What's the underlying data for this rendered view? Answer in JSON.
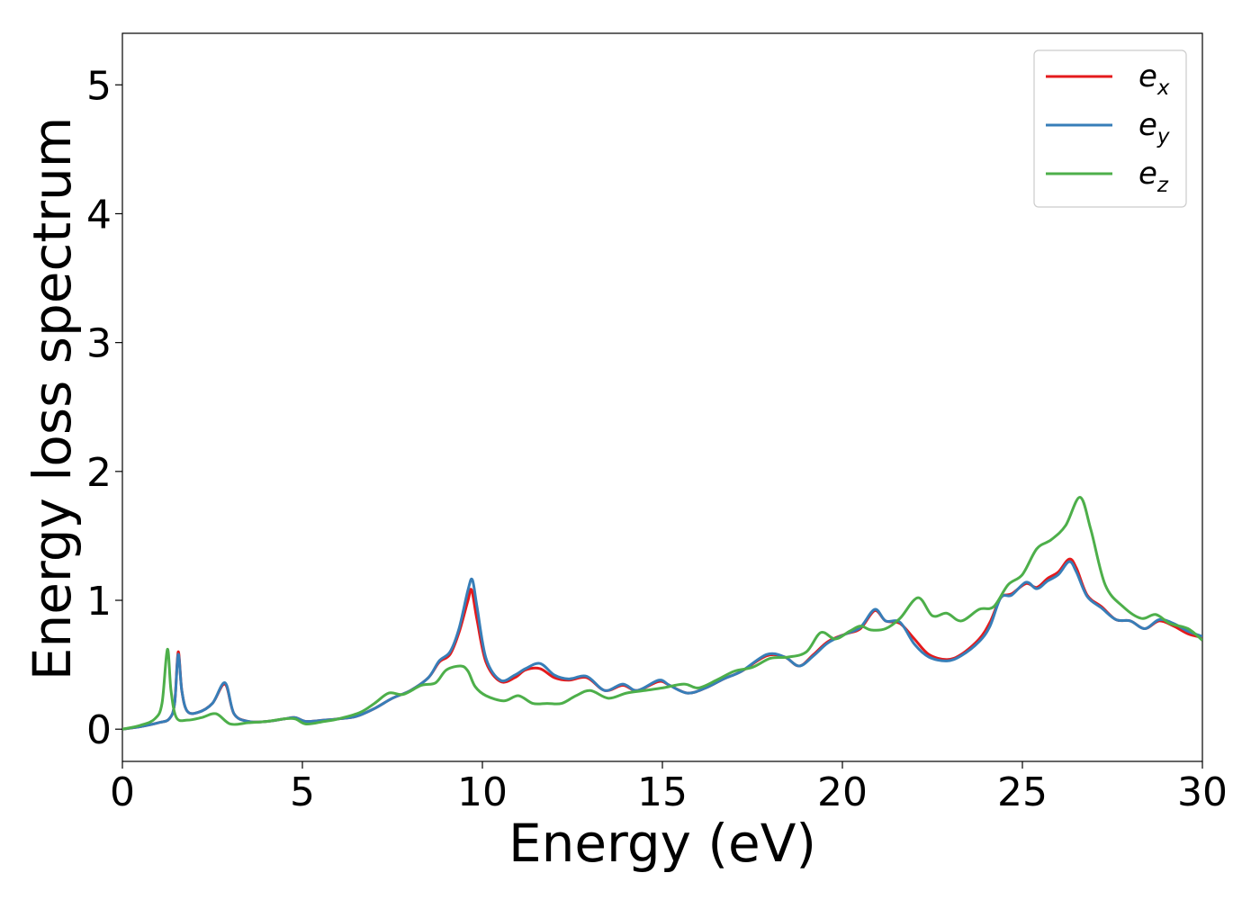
{
  "chart_data": {
    "type": "line",
    "xlabel": "Energy (eV)",
    "ylabel": "Energy loss spectrum",
    "xlim": [
      0,
      30
    ],
    "ylim": [
      -0.25,
      5.4
    ],
    "xticks": [
      0,
      5,
      10,
      15,
      20,
      25,
      30
    ],
    "yticks": [
      0,
      1,
      2,
      3,
      4,
      5
    ],
    "grid": false,
    "legend_position": "top-right",
    "series": [
      {
        "name_base": "e",
        "name_sub": "x",
        "color": "#e41a1c",
        "points": [
          [
            0,
            0
          ],
          [
            0.5,
            0.02
          ],
          [
            1.0,
            0.05
          ],
          [
            1.3,
            0.08
          ],
          [
            1.45,
            0.2
          ],
          [
            1.55,
            0.6
          ],
          [
            1.65,
            0.3
          ],
          [
            1.8,
            0.14
          ],
          [
            2.1,
            0.13
          ],
          [
            2.5,
            0.2
          ],
          [
            2.85,
            0.35
          ],
          [
            3.1,
            0.12
          ],
          [
            3.5,
            0.06
          ],
          [
            4.0,
            0.06
          ],
          [
            4.5,
            0.08
          ],
          [
            4.8,
            0.09
          ],
          [
            5.1,
            0.06
          ],
          [
            5.6,
            0.07
          ],
          [
            6.0,
            0.08
          ],
          [
            6.5,
            0.1
          ],
          [
            7.0,
            0.16
          ],
          [
            7.5,
            0.24
          ],
          [
            8.0,
            0.3
          ],
          [
            8.5,
            0.4
          ],
          [
            8.8,
            0.52
          ],
          [
            9.1,
            0.58
          ],
          [
            9.35,
            0.75
          ],
          [
            9.6,
            1.0
          ],
          [
            9.7,
            1.08
          ],
          [
            9.85,
            0.85
          ],
          [
            10.1,
            0.52
          ],
          [
            10.5,
            0.37
          ],
          [
            10.9,
            0.4
          ],
          [
            11.2,
            0.46
          ],
          [
            11.6,
            0.47
          ],
          [
            12.0,
            0.4
          ],
          [
            12.4,
            0.38
          ],
          [
            12.9,
            0.4
          ],
          [
            13.4,
            0.3
          ],
          [
            13.9,
            0.34
          ],
          [
            14.3,
            0.3
          ],
          [
            14.9,
            0.37
          ],
          [
            15.2,
            0.34
          ],
          [
            15.7,
            0.28
          ],
          [
            16.2,
            0.32
          ],
          [
            16.7,
            0.39
          ],
          [
            17.2,
            0.45
          ],
          [
            17.9,
            0.57
          ],
          [
            18.4,
            0.56
          ],
          [
            18.8,
            0.49
          ],
          [
            19.2,
            0.58
          ],
          [
            19.6,
            0.68
          ],
          [
            20.1,
            0.74
          ],
          [
            20.5,
            0.78
          ],
          [
            20.9,
            0.92
          ],
          [
            21.2,
            0.84
          ],
          [
            21.6,
            0.82
          ],
          [
            22.0,
            0.7
          ],
          [
            22.4,
            0.58
          ],
          [
            22.9,
            0.54
          ],
          [
            23.3,
            0.58
          ],
          [
            23.8,
            0.7
          ],
          [
            24.1,
            0.83
          ],
          [
            24.4,
            1.02
          ],
          [
            24.7,
            1.05
          ],
          [
            25.1,
            1.13
          ],
          [
            25.4,
            1.1
          ],
          [
            25.7,
            1.17
          ],
          [
            26.0,
            1.22
          ],
          [
            26.3,
            1.32
          ],
          [
            26.5,
            1.25
          ],
          [
            26.8,
            1.04
          ],
          [
            27.2,
            0.95
          ],
          [
            27.6,
            0.85
          ],
          [
            28.0,
            0.84
          ],
          [
            28.4,
            0.78
          ],
          [
            28.8,
            0.84
          ],
          [
            29.2,
            0.8
          ],
          [
            29.6,
            0.74
          ],
          [
            30.0,
            0.71
          ]
        ]
      },
      {
        "name_base": "e",
        "name_sub": "y",
        "color": "#377eb8",
        "points": [
          [
            0,
            0
          ],
          [
            0.5,
            0.02
          ],
          [
            1.0,
            0.05
          ],
          [
            1.3,
            0.08
          ],
          [
            1.45,
            0.2
          ],
          [
            1.55,
            0.58
          ],
          [
            1.65,
            0.3
          ],
          [
            1.8,
            0.14
          ],
          [
            2.1,
            0.13
          ],
          [
            2.5,
            0.2
          ],
          [
            2.85,
            0.36
          ],
          [
            3.1,
            0.12
          ],
          [
            3.5,
            0.06
          ],
          [
            4.0,
            0.06
          ],
          [
            4.5,
            0.08
          ],
          [
            4.8,
            0.09
          ],
          [
            5.1,
            0.06
          ],
          [
            5.6,
            0.07
          ],
          [
            6.0,
            0.08
          ],
          [
            6.5,
            0.1
          ],
          [
            7.0,
            0.16
          ],
          [
            7.5,
            0.24
          ],
          [
            8.0,
            0.3
          ],
          [
            8.5,
            0.4
          ],
          [
            8.8,
            0.53
          ],
          [
            9.1,
            0.6
          ],
          [
            9.35,
            0.78
          ],
          [
            9.6,
            1.08
          ],
          [
            9.72,
            1.16
          ],
          [
            9.85,
            0.95
          ],
          [
            10.1,
            0.55
          ],
          [
            10.5,
            0.38
          ],
          [
            10.9,
            0.42
          ],
          [
            11.2,
            0.47
          ],
          [
            11.6,
            0.51
          ],
          [
            12.0,
            0.42
          ],
          [
            12.4,
            0.39
          ],
          [
            12.9,
            0.41
          ],
          [
            13.4,
            0.3
          ],
          [
            13.9,
            0.35
          ],
          [
            14.3,
            0.3
          ],
          [
            14.9,
            0.38
          ],
          [
            15.2,
            0.34
          ],
          [
            15.7,
            0.28
          ],
          [
            16.2,
            0.32
          ],
          [
            16.7,
            0.39
          ],
          [
            17.2,
            0.45
          ],
          [
            17.9,
            0.58
          ],
          [
            18.4,
            0.56
          ],
          [
            18.8,
            0.49
          ],
          [
            19.2,
            0.57
          ],
          [
            19.6,
            0.67
          ],
          [
            20.1,
            0.74
          ],
          [
            20.5,
            0.79
          ],
          [
            20.9,
            0.93
          ],
          [
            21.2,
            0.84
          ],
          [
            21.6,
            0.83
          ],
          [
            22.0,
            0.66
          ],
          [
            22.4,
            0.56
          ],
          [
            22.9,
            0.53
          ],
          [
            23.3,
            0.57
          ],
          [
            23.8,
            0.68
          ],
          [
            24.1,
            0.8
          ],
          [
            24.4,
            1.02
          ],
          [
            24.7,
            1.04
          ],
          [
            25.1,
            1.14
          ],
          [
            25.4,
            1.09
          ],
          [
            25.7,
            1.15
          ],
          [
            26.0,
            1.2
          ],
          [
            26.3,
            1.3
          ],
          [
            26.5,
            1.22
          ],
          [
            26.8,
            1.03
          ],
          [
            27.2,
            0.94
          ],
          [
            27.6,
            0.85
          ],
          [
            28.0,
            0.84
          ],
          [
            28.4,
            0.78
          ],
          [
            28.8,
            0.85
          ],
          [
            29.2,
            0.82
          ],
          [
            29.6,
            0.76
          ],
          [
            30.0,
            0.72
          ]
        ]
      },
      {
        "name_base": "e",
        "name_sub": "z",
        "color": "#4daf4a",
        "points": [
          [
            0,
            0
          ],
          [
            0.5,
            0.03
          ],
          [
            0.9,
            0.08
          ],
          [
            1.1,
            0.2
          ],
          [
            1.25,
            0.62
          ],
          [
            1.35,
            0.3
          ],
          [
            1.5,
            0.09
          ],
          [
            1.8,
            0.07
          ],
          [
            2.2,
            0.09
          ],
          [
            2.6,
            0.12
          ],
          [
            3.0,
            0.04
          ],
          [
            3.5,
            0.05
          ],
          [
            4.0,
            0.06
          ],
          [
            4.5,
            0.08
          ],
          [
            4.8,
            0.08
          ],
          [
            5.1,
            0.04
          ],
          [
            5.6,
            0.06
          ],
          [
            6.0,
            0.08
          ],
          [
            6.6,
            0.13
          ],
          [
            7.0,
            0.2
          ],
          [
            7.4,
            0.28
          ],
          [
            7.8,
            0.27
          ],
          [
            8.3,
            0.34
          ],
          [
            8.7,
            0.36
          ],
          [
            9.0,
            0.46
          ],
          [
            9.4,
            0.49
          ],
          [
            9.6,
            0.45
          ],
          [
            9.8,
            0.33
          ],
          [
            10.1,
            0.26
          ],
          [
            10.6,
            0.22
          ],
          [
            11.0,
            0.26
          ],
          [
            11.4,
            0.2
          ],
          [
            11.8,
            0.2
          ],
          [
            12.2,
            0.2
          ],
          [
            12.6,
            0.26
          ],
          [
            13.0,
            0.3
          ],
          [
            13.5,
            0.24
          ],
          [
            14.0,
            0.28
          ],
          [
            14.5,
            0.3
          ],
          [
            15.0,
            0.32
          ],
          [
            15.6,
            0.35
          ],
          [
            16.0,
            0.32
          ],
          [
            16.5,
            0.38
          ],
          [
            17.0,
            0.45
          ],
          [
            17.5,
            0.48
          ],
          [
            18.0,
            0.55
          ],
          [
            18.5,
            0.56
          ],
          [
            19.0,
            0.6
          ],
          [
            19.4,
            0.75
          ],
          [
            19.8,
            0.7
          ],
          [
            20.2,
            0.76
          ],
          [
            20.5,
            0.8
          ],
          [
            20.8,
            0.77
          ],
          [
            21.2,
            0.78
          ],
          [
            21.6,
            0.86
          ],
          [
            22.1,
            1.02
          ],
          [
            22.5,
            0.88
          ],
          [
            22.9,
            0.9
          ],
          [
            23.3,
            0.84
          ],
          [
            23.8,
            0.93
          ],
          [
            24.2,
            0.95
          ],
          [
            24.6,
            1.12
          ],
          [
            25.0,
            1.2
          ],
          [
            25.4,
            1.4
          ],
          [
            25.8,
            1.47
          ],
          [
            26.2,
            1.58
          ],
          [
            26.6,
            1.8
          ],
          [
            26.9,
            1.55
          ],
          [
            27.3,
            1.12
          ],
          [
            27.8,
            0.95
          ],
          [
            28.3,
            0.86
          ],
          [
            28.7,
            0.89
          ],
          [
            29.1,
            0.82
          ],
          [
            29.6,
            0.78
          ],
          [
            30.0,
            0.69
          ]
        ]
      }
    ]
  }
}
